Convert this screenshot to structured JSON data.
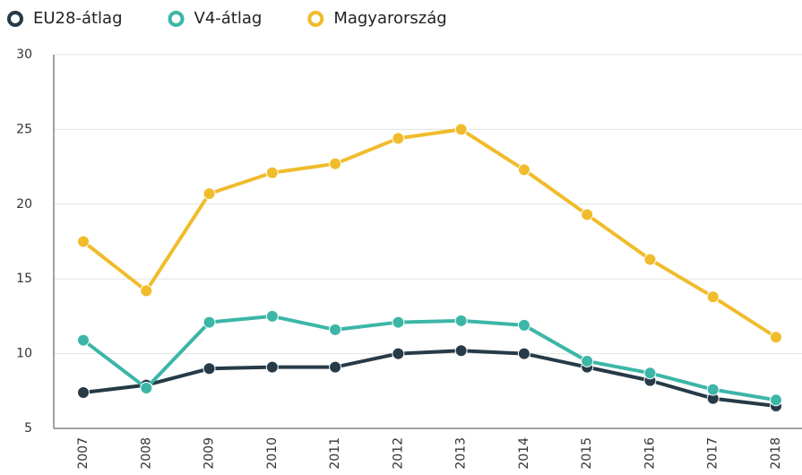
{
  "chart_data": {
    "type": "line",
    "categories": [
      "2007",
      "2008",
      "2009",
      "2010",
      "2011",
      "2012",
      "2013",
      "2014",
      "2015",
      "2016",
      "2017",
      "2018"
    ],
    "series": [
      {
        "name": "EU28-átlag",
        "color": "#263a47",
        "values": [
          7.4,
          7.9,
          9.0,
          9.1,
          9.1,
          10.0,
          10.2,
          10.0,
          9.1,
          8.2,
          7.0,
          6.5
        ]
      },
      {
        "name": "V4-átlag",
        "color": "#3cb6a6",
        "values": [
          10.9,
          7.7,
          12.1,
          12.5,
          11.6,
          12.1,
          12.2,
          11.9,
          9.5,
          8.7,
          7.6,
          6.9
        ]
      },
      {
        "name": "Magyarország",
        "color": "#f0bc2c",
        "values": [
          17.5,
          14.2,
          20.7,
          22.1,
          22.7,
          24.4,
          25.0,
          22.3,
          19.3,
          16.3,
          13.8,
          11.1
        ]
      }
    ],
    "ylim": [
      5,
      30
    ],
    "yticks": [
      5,
      10,
      15,
      20,
      25,
      30
    ],
    "grid": true,
    "legend": "top-left"
  }
}
